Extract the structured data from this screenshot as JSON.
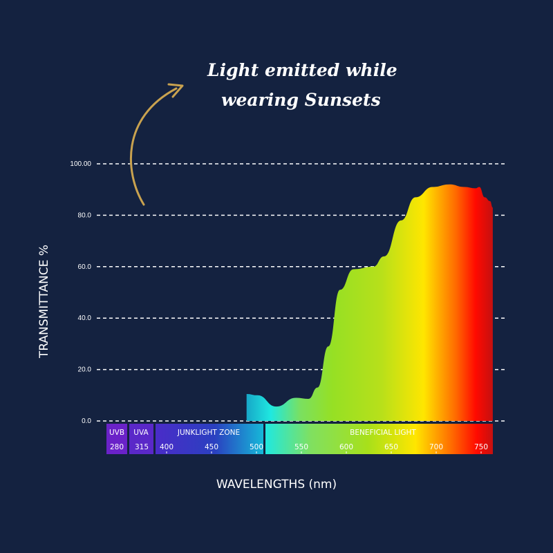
{
  "chart_data": {
    "type": "area",
    "title": "",
    "annotation": [
      "Light emitted while",
      "wearing Sunsets"
    ],
    "xlabel": "WAVELENGTHS (nm)",
    "ylabel": "TRANSMITTANCE %",
    "ylim": [
      0,
      100
    ],
    "xlim": [
      400,
      763
    ],
    "y_ticks": [
      {
        "value": 0,
        "label": "0.0"
      },
      {
        "value": 20,
        "label": "20.0"
      },
      {
        "value": 40,
        "label": "40.0"
      },
      {
        "value": 60,
        "label": "60.0"
      },
      {
        "value": 80,
        "label": "80.0"
      },
      {
        "value": 100,
        "label": "100.00"
      }
    ],
    "x_ticks": [
      {
        "value": 400,
        "label": "400"
      },
      {
        "value": 450,
        "label": "450"
      },
      {
        "value": 500,
        "label": "500"
      },
      {
        "value": 550,
        "label": "550"
      },
      {
        "value": 600,
        "label": "600"
      },
      {
        "value": 650,
        "label": "650"
      },
      {
        "value": 700,
        "label": "700"
      },
      {
        "value": 750,
        "label": "750"
      }
    ],
    "bands": [
      {
        "name": "UVB",
        "label": "UVB",
        "tick": "280",
        "color": "#6a22c8"
      },
      {
        "name": "UVA",
        "label": "UVA",
        "tick": "315",
        "color": "#5a28c8"
      },
      {
        "name": "junklight",
        "label": "JUNKLIGHT ZONE",
        "tick": "",
        "color": "#3030c0"
      },
      {
        "name": "beneficial",
        "label": "BENEFICIAL LIGHT",
        "tick": "",
        "color": "#20e0e0"
      }
    ],
    "series": [
      {
        "name": "Sunsets transmittance",
        "x": [
          489,
          501,
          522,
          544,
          558,
          568,
          580,
          593,
          608,
          630,
          642,
          661,
          677,
          696,
          715,
          731,
          744,
          748,
          754,
          760,
          763
        ],
        "y": [
          10.5,
          10,
          5.6,
          9,
          8.6,
          13,
          29,
          51,
          59,
          60,
          64,
          78,
          87,
          91,
          92,
          91,
          90.5,
          91,
          87,
          85.5,
          83
        ]
      }
    ],
    "grid": true
  },
  "colors": {
    "background": "#142240",
    "arrow": "#c9a24f"
  }
}
